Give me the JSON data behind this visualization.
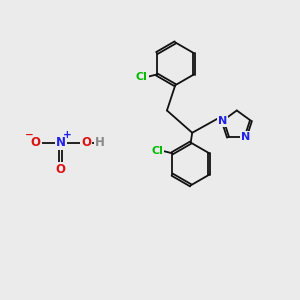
{
  "bg": "#ebebeb",
  "bond_color": "#111111",
  "N_color": "#2020ee",
  "O_color": "#dd1111",
  "Cl_color": "#00bb00",
  "H_color": "#888888",
  "figsize": [
    3.0,
    3.0
  ],
  "dpi": 100,
  "xlim": [
    0,
    10
  ],
  "ylim": [
    0,
    10
  ]
}
